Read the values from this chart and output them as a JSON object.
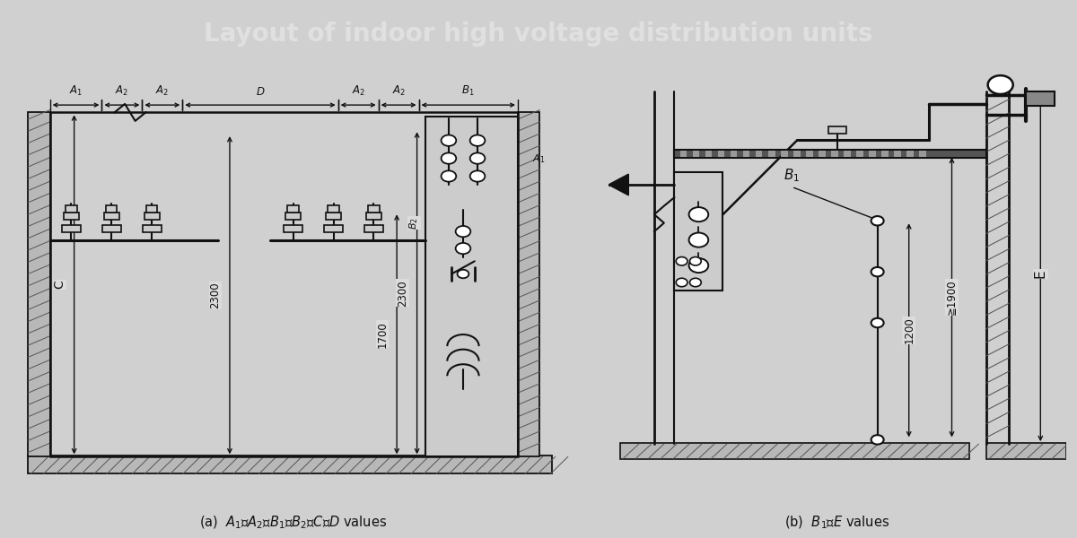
{
  "title": "Layout of indoor high voltage distribution units",
  "title_bg": "#3c3c3c",
  "title_fg": "#e0e0e0",
  "bg_color": "#d0d0d0",
  "diagram_bg": "#dcdcdc",
  "lc": "#111111",
  "caption_a": "(a)  $A_1$、$A_2$、$B_1$、$B_2$、$C$、$D$ values",
  "caption_b": "(b)  $B_1$、$E$ values"
}
